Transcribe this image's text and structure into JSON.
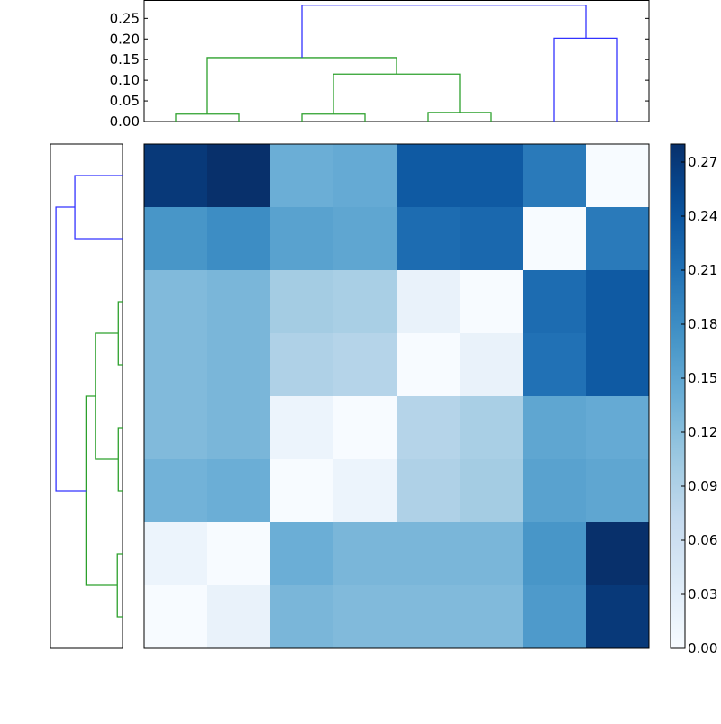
{
  "chart_data": {
    "type": "heatmap",
    "title": "",
    "xlabel": "",
    "ylabel": "",
    "colormap": "Blues",
    "colorbar": {
      "vmin": 0.0,
      "vmax": 0.28,
      "ticks": [
        0.0,
        0.03,
        0.06,
        0.09,
        0.12,
        0.15,
        0.18,
        0.21,
        0.24,
        0.27
      ],
      "tick_labels": [
        "0.00",
        "0.03",
        "0.06",
        "0.09",
        "0.12",
        "0.15",
        "0.18",
        "0.21",
        "0.24",
        "0.27"
      ]
    },
    "matrix": [
      [
        0.27,
        0.28,
        0.14,
        0.145,
        0.235,
        0.235,
        0.2,
        0.0
      ],
      [
        0.17,
        0.18,
        0.155,
        0.15,
        0.215,
        0.22,
        0.0,
        0.2
      ],
      [
        0.125,
        0.13,
        0.1,
        0.095,
        0.02,
        0.0,
        0.215,
        0.235
      ],
      [
        0.125,
        0.13,
        0.09,
        0.085,
        0.0,
        0.02,
        0.21,
        0.235
      ],
      [
        0.125,
        0.13,
        0.015,
        0.0,
        0.085,
        0.095,
        0.15,
        0.145
      ],
      [
        0.135,
        0.14,
        0.0,
        0.015,
        0.09,
        0.1,
        0.155,
        0.15
      ],
      [
        0.015,
        0.0,
        0.14,
        0.13,
        0.13,
        0.13,
        0.17,
        0.28
      ],
      [
        0.0,
        0.02,
        0.13,
        0.125,
        0.125,
        0.125,
        0.165,
        0.27
      ]
    ],
    "row_labels": [],
    "col_labels": [],
    "top_dendrogram": {
      "ylim": [
        0.0,
        0.29
      ],
      "yticks": [
        0.0,
        0.05,
        0.1,
        0.15,
        0.2,
        0.25
      ],
      "ytick_labels": [
        "0.00",
        "0.05",
        "0.10",
        "0.15",
        "0.20",
        "0.25"
      ],
      "links": [
        {
          "left": 0,
          "right": 1,
          "height": 0.018,
          "color": "#2ca02c"
        },
        {
          "left": 2,
          "right": 3,
          "height": 0.018,
          "color": "#2ca02c"
        },
        {
          "left": 4,
          "right": 5,
          "height": 0.022,
          "color": "#2ca02c"
        },
        {
          "left": "2-3",
          "right": "4-5",
          "height": 0.115,
          "color": "#2ca02c"
        },
        {
          "left": "0-1",
          "right": "2-5",
          "height": 0.155,
          "color": "#2ca02c"
        },
        {
          "left": 6,
          "right": 7,
          "height": 0.202,
          "color": "#3333ff"
        },
        {
          "left": "0-5",
          "right": "6-7",
          "height": 0.282,
          "color": "#3333ff"
        }
      ]
    },
    "left_dendrogram": {
      "orientation": "left",
      "links": [
        {
          "top": 0,
          "bottom": 1,
          "height": 0.202,
          "color": "#3333ff"
        },
        {
          "top": 2,
          "bottom": 3,
          "height": 0.018,
          "color": "#2ca02c"
        },
        {
          "top": 4,
          "bottom": 5,
          "height": 0.018,
          "color": "#2ca02c"
        },
        {
          "top": "2-3",
          "bottom": "4-5",
          "height": 0.115,
          "color": "#2ca02c"
        },
        {
          "top": 6,
          "bottom": 7,
          "height": 0.022,
          "color": "#2ca02c"
        },
        {
          "top": "2-5",
          "bottom": "6-7",
          "height": 0.155,
          "color": "#2ca02c"
        },
        {
          "top": "0-1",
          "bottom": "2-7",
          "height": 0.282,
          "color": "#3333ff"
        }
      ]
    },
    "grid": false,
    "legend": null
  },
  "colors": {
    "cluster_green": "#2ca02c",
    "cluster_blue": "#3333ff",
    "axes": "#000000"
  }
}
